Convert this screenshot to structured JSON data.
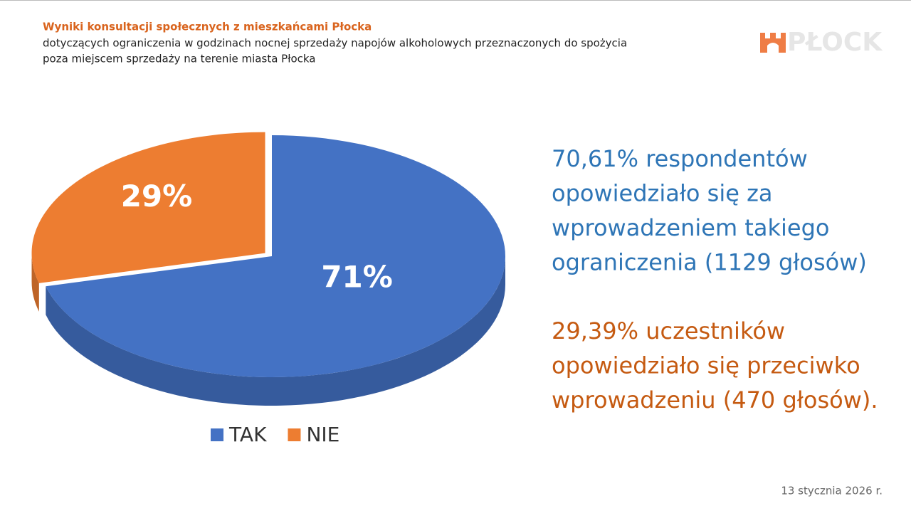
{
  "header": {
    "title": "Wyniki konsultacji społecznych z mieszkańcami Płocka",
    "subtitle": [
      "dotyczących ograniczenia w godzinach nocnej sprzedaży napojów alkoholowych przeznaczonych do spożycia",
      "poza miejscem sprzedaży na terenie miasta Płocka"
    ]
  },
  "logo": "PŁOCK",
  "chart_data": {
    "type": "pie",
    "categories": [
      "TAK",
      "NIE"
    ],
    "values": [
      71,
      29
    ],
    "value_labels": [
      "71%",
      "29%"
    ],
    "colors": [
      "#4472c4",
      "#ed7d31"
    ],
    "legend": "bottom"
  },
  "summary": [
    [
      "70,61% respondentów",
      "opowiedziało się za",
      "wprowadzeniem takiego",
      "ograniczenia (1129 głosów)"
    ],
    [
      "29,39% uczestników",
      "opowiedziało się przeciwko",
      "wprowadzeniu (470 głosów)."
    ]
  ],
  "footer": {
    "date": "13 stycznia 2026 r."
  }
}
